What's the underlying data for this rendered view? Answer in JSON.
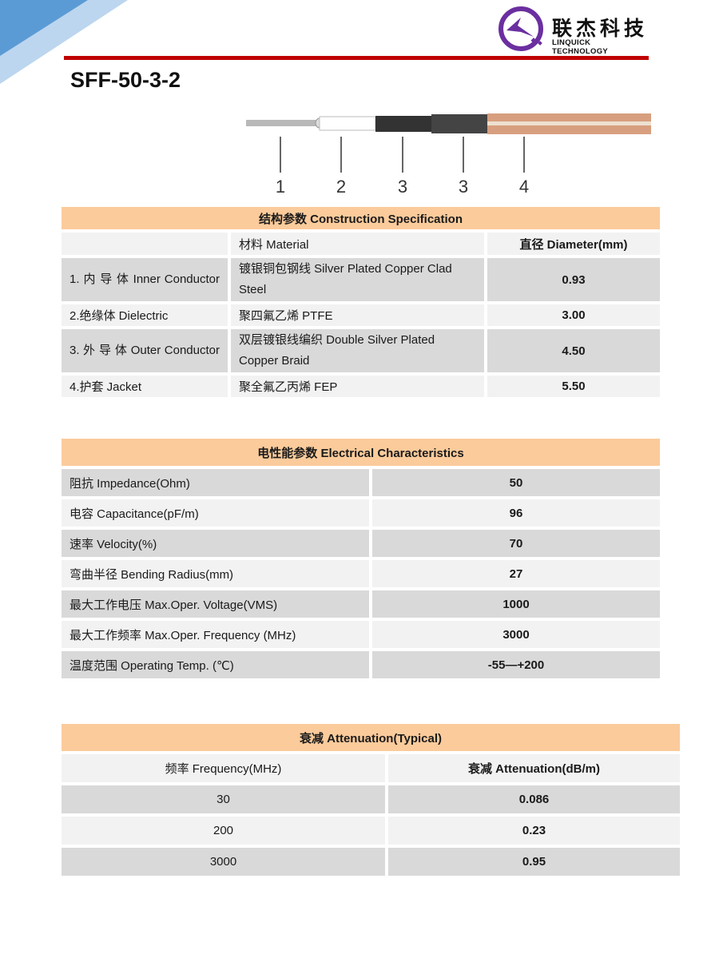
{
  "logo": {
    "cn": "联杰科技",
    "en": "LINQUICK TECHNOLOGY",
    "color": "#6b2fa0"
  },
  "title": "SFF-50-3-2",
  "cable_labels": [
    "1",
    "2",
    "3",
    "3",
    "4"
  ],
  "construction": {
    "header": "结构参数 Construction Specification",
    "columns": [
      "",
      "材料 Material",
      "直径 Diameter(mm)"
    ],
    "rows": [
      {
        "part": "1. 内 导 体 Inner Conductor",
        "material": "镀银铜包钢线 Silver Plated Copper Clad Steel",
        "diameter": "0.93"
      },
      {
        "part": "2.绝缘体 Dielectric",
        "material": "聚四氟乙烯 PTFE",
        "diameter": "3.00"
      },
      {
        "part": "3. 外 导 体 Outer Conductor",
        "material": "双层镀银线编织 Double Silver Plated Copper Braid",
        "diameter": "4.50"
      },
      {
        "part": "4.护套 Jacket",
        "material": "聚全氟乙丙烯 FEP",
        "diameter": "5.50"
      }
    ]
  },
  "electrical": {
    "header": "电性能参数 Electrical Characteristics",
    "rows": [
      {
        "label": "阻抗 Impedance(Ohm)",
        "value": "50"
      },
      {
        "label": "电容 Capacitance(pF/m)",
        "value": "96"
      },
      {
        "label": "速率 Velocity(%)",
        "value": "70"
      },
      {
        "label": "弯曲半径 Bending Radius(mm)",
        "value": "27"
      },
      {
        "label": "最大工作电压 Max.Oper. Voltage(VMS)",
        "value": "1000"
      },
      {
        "label": "最大工作频率 Max.Oper. Frequency (MHz)",
        "value": "3000"
      },
      {
        "label": "温度范围 Operating Temp. (℃)",
        "value": "-55—+200"
      }
    ]
  },
  "attenuation": {
    "header": "衰减 Attenuation(Typical)",
    "columns": [
      "频率 Frequency(MHz)",
      "衰减 Attenuation(dB/m)"
    ],
    "rows": [
      {
        "freq": "30",
        "att": "0.086"
      },
      {
        "freq": "200",
        "att": "0.23"
      },
      {
        "freq": "3000",
        "att": "0.95"
      }
    ]
  },
  "colors": {
    "header": "#fbcb9b",
    "row_dark": "#d9d9d9",
    "row_light": "#f2f2f2",
    "rule": "#c00000"
  }
}
